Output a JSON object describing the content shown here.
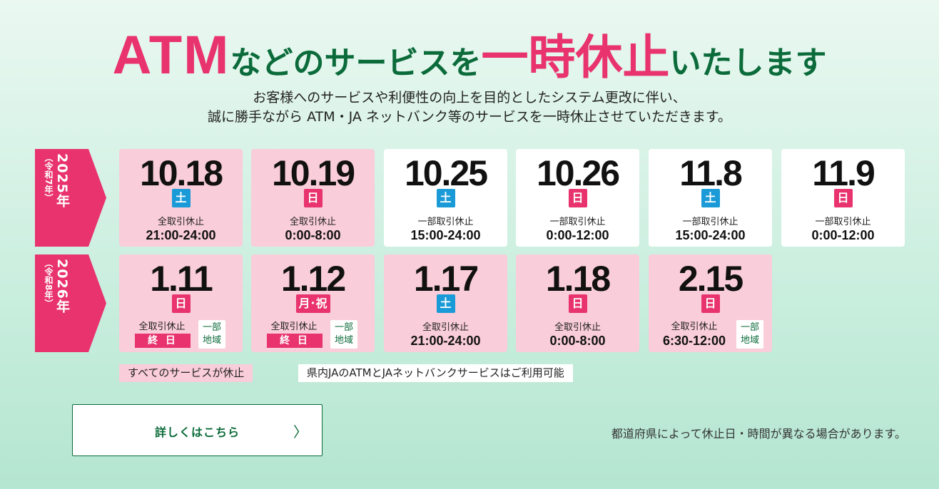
{
  "title": {
    "atm": "ATM",
    "mid": "などのサービスを",
    "emph": "一時休止",
    "end": "いたします"
  },
  "subtitle": {
    "line1": "お客様へのサービスや利便性の向上を目的としたシステム更改に伴い、",
    "line2": "誠に勝手ながら ATM・JA ネットバンク等のサービスを一時休止させていただきます。"
  },
  "years": [
    {
      "year": "2025年",
      "era": "（令和7年）"
    },
    {
      "year": "2026年",
      "era": "（令和8年）"
    }
  ],
  "row2025": [
    {
      "date": "10.18",
      "day": "土",
      "scope": "全取引休止",
      "time": "21:00-24:00"
    },
    {
      "date": "10.19",
      "day": "日",
      "scope": "全取引休止",
      "time": "0:00-8:00"
    },
    {
      "date": "10.25",
      "day": "土",
      "scope": "一部取引休止",
      "time": "15:00-24:00"
    },
    {
      "date": "10.26",
      "day": "日",
      "scope": "一部取引休止",
      "time": "0:00-12:00"
    },
    {
      "date": "11.8",
      "day": "土",
      "scope": "一部取引休止",
      "time": "15:00-24:00"
    },
    {
      "date": "11.9",
      "day": "日",
      "scope": "一部取引休止",
      "time": "0:00-12:00"
    }
  ],
  "row2026": [
    {
      "date": "1.11",
      "day": "日",
      "scope": "全取引休止",
      "time": "終 日",
      "tag": "一部地域"
    },
    {
      "date": "1.12",
      "day": "月･祝",
      "scope": "全取引休止",
      "time": "終 日",
      "tag": "一部地域"
    },
    {
      "date": "1.17",
      "day": "土",
      "scope": "全取引休止",
      "time": "21:00-24:00"
    },
    {
      "date": "1.18",
      "day": "日",
      "scope": "全取引休止",
      "time": "0:00-8:00"
    },
    {
      "date": "2.15",
      "day": "日",
      "scope": "全取引休止",
      "time": "6:30-12:00",
      "tag": "一部地域"
    }
  ],
  "tag_lines": [
    "一部",
    "地域"
  ],
  "legend": {
    "pink": "すべてのサービスが休止",
    "white": "県内JAのATMとJAネットバンクサービスはご利用可能"
  },
  "button": {
    "label": "詳しくはこちら",
    "chevron": "〉"
  },
  "note": "都道府県によって休止日・時間が異なる場合があります。",
  "colors": {
    "pink": "#e8336f",
    "green": "#0b6b3a",
    "saturday": "#1a9ad6",
    "card_pink": "#f9cdd9"
  }
}
